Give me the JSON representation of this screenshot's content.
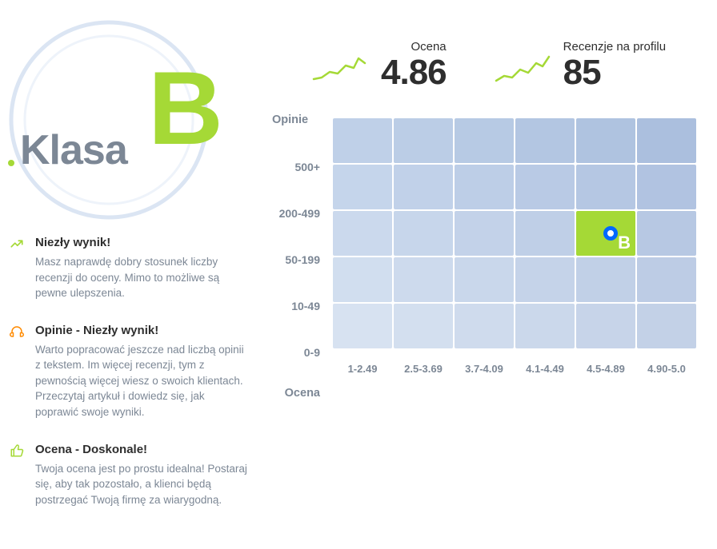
{
  "grade": {
    "label": "Klasa",
    "letter": "B",
    "circle_color": "#dbe5f3",
    "letter_color": "#a5d936",
    "label_color": "#7c8795"
  },
  "metrics": {
    "rating": {
      "label": "Ocena",
      "value": "4.86",
      "spark_color": "#a5d936"
    },
    "reviews": {
      "label": "Recenzje na profilu",
      "value": "85",
      "spark_color": "#a5d936"
    }
  },
  "feedback": [
    {
      "icon": "trend-up",
      "icon_color": "#a5d936",
      "title": "Niezły wynik!",
      "desc": "Masz naprawdę dobry stosunek liczby recenzji do oceny. Mimo to możliwe są pewne ulepszenia."
    },
    {
      "icon": "headphones",
      "icon_color": "#ff8a00",
      "title": "Opinie - Niezły wynik!",
      "desc": "Warto popracować jeszcze nad liczbą opinii z tekstem. Im więcej recenzji, tym z pewnością więcej wiesz o swoich klientach. Przeczytaj artykuł i dowiedz się, jak poprawić swoje wyniki."
    },
    {
      "icon": "thumb-up",
      "icon_color": "#a5d936",
      "title": "Ocena - Doskonale!",
      "desc": "Twoja ocena jest po prostu idealna! Postaraj się, aby tak pozostało, a klienci będą postrzegać Twoją firmę za wiarygodną."
    }
  ],
  "heatmap": {
    "y_title": "Opinie",
    "x_title": "Ocena",
    "y_labels": [
      "500+",
      "200-499",
      "50-199",
      "10-49",
      "0-9"
    ],
    "x_labels": [
      "1-2.49",
      "2.5-3.69",
      "3.7-4.09",
      "4.1-4.49",
      "4.5-4.89",
      "4.90-5.0"
    ],
    "cell_colors": [
      [
        "#bfd0e8",
        "#bbcde6",
        "#b7cae4",
        "#b3c6e2",
        "#afc3e0",
        "#abbfde"
      ],
      [
        "#c5d5eb",
        "#c1d1e9",
        "#bdcee7",
        "#b9cae5",
        "#b5c7e3",
        "#b1c3e1"
      ],
      [
        "#cbd9ed",
        "#c7d6eb",
        "#c3d2e9",
        "#bfcfe7",
        "#bbcbe5",
        "#b7c8e3"
      ],
      [
        "#d1deef",
        "#cddaed",
        "#c9d7eb",
        "#c5d3e9",
        "#c1d0e7",
        "#bdcce5"
      ],
      [
        "#d7e2f1",
        "#d3dfef",
        "#cfdbed",
        "#cbd8eb",
        "#c7d4e9",
        "#c3d1e7"
      ]
    ],
    "highlight": {
      "row": 2,
      "col": 4,
      "color": "#a5d936",
      "letter": "B",
      "marker_border": "#0068ff"
    }
  }
}
